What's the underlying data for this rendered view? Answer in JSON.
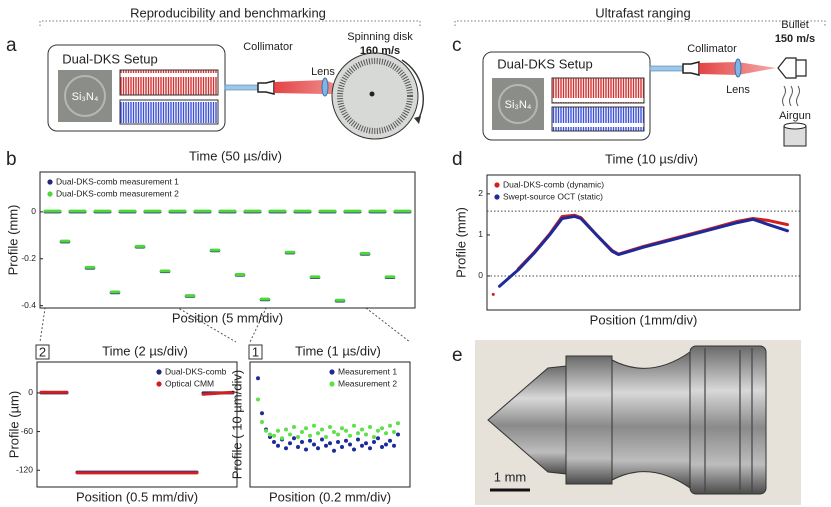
{
  "figure": {
    "headings": [
      "Reproducibility and benchmarking",
      "Ultrafast ranging"
    ],
    "panel_letters": [
      "a",
      "b",
      "c",
      "d",
      "e"
    ],
    "panel_a": {
      "setup": "Dual-DKS Setup",
      "chip": "Si₃N₄",
      "collimator": "Collimator",
      "lens": "Lens",
      "target": "Spinning disk",
      "speed": "160 m/s"
    },
    "panel_c": {
      "setup": "Dual-DKS Setup",
      "chip": "Si₃N₄",
      "collimator": "Collimator",
      "lens": "Lens",
      "target": "Bullet",
      "speed": "150 m/s",
      "launcher": "Airgun"
    },
    "panel_e": {
      "scale_bar": "1 mm"
    }
  },
  "chart_data": [
    {
      "type": "line",
      "title": "Time (50 µs/div)",
      "xlabel": "Position (5 mm/div)",
      "ylabel": "Profile (mm)",
      "xlim": [
        0,
        15
      ],
      "ylim": [
        -0.41,
        0.17
      ],
      "yticks": [
        0,
        -0.2,
        -0.4
      ],
      "legend": "upper left",
      "x": [
        0.2,
        0.8,
        0.8,
        0.85,
        1.15,
        1.15,
        1.2,
        1.8,
        1.8,
        1.85,
        2.15,
        2.15,
        2.2,
        2.8,
        2.8,
        2.85,
        3.15,
        3.15,
        3.2,
        3.8,
        3.8,
        3.85,
        4.15,
        4.15,
        4.2,
        4.8,
        4.8,
        4.85,
        5.15,
        5.15,
        5.2,
        5.8,
        5.8,
        5.85,
        6.15,
        6.15,
        6.2,
        6.8,
        6.8,
        6.85,
        7.15,
        7.15,
        7.2,
        7.8,
        7.8,
        7.85,
        8.15,
        8.15,
        8.2,
        8.8,
        8.8,
        8.85,
        9.15,
        9.15,
        9.2,
        9.8,
        9.8,
        9.85,
        10.15,
        10.15,
        10.2,
        10.8,
        10.8,
        10.85,
        11.15,
        11.15,
        11.2,
        11.8,
        11.8,
        11.85,
        12.15,
        12.15,
        12.2,
        12.8,
        12.8,
        12.85,
        13.15,
        13.15,
        13.2,
        13.8,
        13.8,
        13.85,
        14.15,
        14.15,
        14.2,
        14.8
      ],
      "series": [
        {
          "name": "Dual-DKS-comb measurement 1",
          "color": "#1f2a7a",
          "values": [
            0,
            0,
            null,
            -0.128,
            -0.128,
            null,
            0,
            0,
            null,
            -0.24,
            -0.24,
            null,
            0,
            0,
            null,
            -0.345,
            -0.345,
            null,
            0,
            0,
            null,
            -0.15,
            -0.15,
            null,
            0,
            0,
            null,
            -0.255,
            -0.255,
            null,
            0,
            0,
            null,
            -0.36,
            -0.36,
            null,
            0,
            0,
            null,
            -0.166,
            -0.166,
            null,
            0,
            0,
            null,
            -0.27,
            -0.27,
            null,
            0,
            0,
            null,
            -0.375,
            -0.375,
            null,
            0,
            0,
            null,
            -0.175,
            -0.175,
            null,
            0,
            0,
            null,
            -0.28,
            -0.28,
            null,
            0,
            0,
            null,
            -0.38,
            -0.38,
            null,
            0,
            0,
            null,
            -0.18,
            -0.18,
            null,
            0,
            0,
            null,
            -0.28,
            -0.28,
            null,
            0,
            0
          ]
        },
        {
          "name": "Dual-DKS-comb measurement 2",
          "color": "#4fd63a",
          "values": [
            0.003,
            0.003,
            null,
            -0.125,
            -0.125,
            null,
            0.003,
            0.003,
            null,
            -0.237,
            -0.237,
            null,
            0.003,
            0.003,
            null,
            -0.342,
            -0.342,
            null,
            0.003,
            0.003,
            null,
            -0.147,
            -0.147,
            null,
            0.003,
            0.003,
            null,
            -0.252,
            -0.252,
            null,
            0.003,
            0.003,
            null,
            -0.357,
            -0.357,
            null,
            0.003,
            0.003,
            null,
            -0.163,
            -0.163,
            null,
            0.003,
            0.003,
            null,
            -0.267,
            -0.267,
            null,
            0.003,
            0.003,
            null,
            -0.372,
            -0.372,
            null,
            0.003,
            0.003,
            null,
            -0.172,
            -0.172,
            null,
            0.003,
            0.003,
            null,
            -0.277,
            -0.277,
            null,
            0.003,
            0.003,
            null,
            -0.377,
            -0.377,
            null,
            0.003,
            0.003,
            null,
            -0.177,
            -0.177,
            null,
            0.003,
            0.003,
            null,
            -0.277,
            -0.277,
            null,
            0.003,
            0.003
          ]
        }
      ]
    },
    {
      "type": "line",
      "title": "Time (10 µs/div)",
      "xlabel": "Position (1mm/div)",
      "ylabel": "Profile (mm)",
      "xlim": [
        0,
        10
      ],
      "ylim": [
        -0.83,
        2.46
      ],
      "yticks": [
        0,
        1,
        2
      ],
      "hlines": [
        0,
        1.58
      ],
      "legend": "upper left",
      "series": [
        {
          "name": "Dual-DKS-comb   (dynamic)",
          "color": "#d0201f",
          "x": [
            0.2,
            0.2,
            1.0,
            1.5,
            2.0,
            2.4,
            2.8,
            3.0,
            3.5,
            4.0,
            4.2,
            5.0,
            6.0,
            7.0,
            8.0,
            8.5,
            9.0,
            9.6
          ],
          "values": [
            -0.45,
            null,
            0.17,
            0.57,
            1.02,
            1.45,
            1.48,
            1.42,
            1.0,
            0.62,
            0.53,
            0.72,
            0.92,
            1.12,
            1.33,
            1.4,
            1.35,
            1.25
          ]
        },
        {
          "name": "Swept-source OCT   (static)",
          "color": "#1f2a9a",
          "x": [
            0.4,
            1.0,
            1.5,
            2.0,
            2.4,
            2.8,
            3.0,
            3.5,
            4.0,
            4.2,
            5.0,
            6.0,
            7.0,
            8.0,
            8.5,
            9.0,
            9.6
          ],
          "values": [
            -0.25,
            0.15,
            0.55,
            1.0,
            1.4,
            1.45,
            1.4,
            1.0,
            0.6,
            0.52,
            0.7,
            0.9,
            1.1,
            1.3,
            1.38,
            1.25,
            1.1
          ]
        }
      ]
    },
    {
      "type": "line",
      "inset_label": "2",
      "title": "Time (2 µs/div)",
      "xlabel": "Position (0.5 mm/div)",
      "ylabel": "Profile (µm)",
      "xlim": [
        0,
        10
      ],
      "ylim": [
        -146,
        48
      ],
      "yticks": [
        0,
        -60,
        -120
      ],
      "legend": "upper right",
      "x": [
        0.2,
        1.5,
        1.5,
        2.0,
        8.0,
        8.0,
        8.3,
        9.8
      ],
      "series": [
        {
          "name": "Dual-DKS-comb",
          "color": "#1f2a7a",
          "values": [
            0,
            0,
            null,
            -123,
            -123,
            null,
            0,
            0
          ]
        },
        {
          "name": "Optical CMM",
          "color": "#d0201f",
          "values": [
            1,
            1,
            null,
            -124,
            -124,
            null,
            -2,
            1
          ]
        }
      ]
    },
    {
      "type": "scatter",
      "inset_label": "1",
      "title": "Time (1 µs/div)",
      "xlabel": "Position (0.2 mm/div)",
      "ylabel": "Profile ( 10 µm/div)",
      "xlim": [
        0,
        10
      ],
      "ylim": [
        0,
        10
      ],
      "legend": "upper right",
      "x": [
        0.5,
        0.75,
        1,
        1.25,
        1.5,
        1.75,
        2,
        2.25,
        2.5,
        2.75,
        3,
        3.25,
        3.5,
        3.75,
        4,
        4.25,
        4.5,
        4.75,
        5,
        5.25,
        5.5,
        5.75,
        6,
        6.25,
        6.5,
        6.75,
        7,
        7.25,
        7.5,
        7.75,
        8,
        8.25,
        8.5,
        8.75,
        9,
        9.25
      ],
      "series": [
        {
          "name": "Measurement 1",
          "color": "#1f2a9a",
          "values": [
            8.7,
            5.9,
            4.6,
            4.0,
            3.6,
            3.3,
            3.8,
            3.1,
            3.5,
            3.9,
            3.2,
            3.6,
            3.0,
            3.7,
            3.4,
            3.1,
            3.8,
            3.3,
            3.5,
            2.9,
            3.6,
            3.2,
            3.7,
            3.4,
            3.0,
            3.8,
            3.3,
            3.5,
            3.1,
            3.6,
            3.9,
            3.2,
            3.4,
            3.7,
            3.3,
            4.2
          ]
        },
        {
          "name": "Measurement 2",
          "color": "#5ee04a",
          "values": [
            7.0,
            5.2,
            4.5,
            4.2,
            4.1,
            4.5,
            3.9,
            4.6,
            4.2,
            4.8,
            4.0,
            4.4,
            4.7,
            4.1,
            4.9,
            4.3,
            4.6,
            4.0,
            4.8,
            4.4,
            4.2,
            4.7,
            4.5,
            4.1,
            4.9,
            4.3,
            4.6,
            4.2,
            4.8,
            4.0,
            4.5,
            4.7,
            4.3,
            4.9,
            4.4,
            5.1
          ]
        }
      ]
    }
  ]
}
